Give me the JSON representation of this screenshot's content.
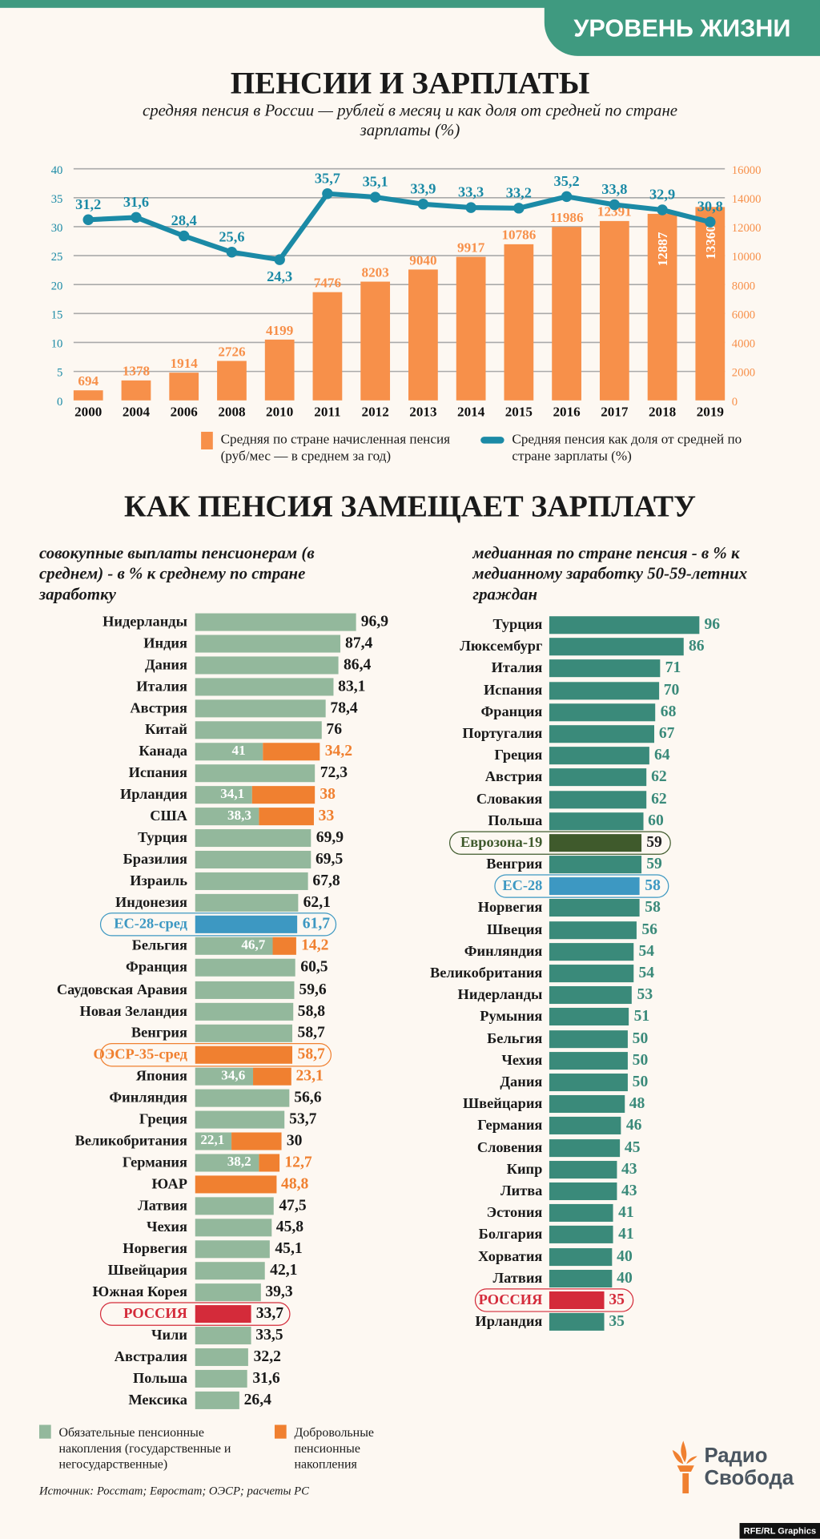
{
  "header": {
    "section_badge": "УРОВЕНЬ ЖИЗНИ"
  },
  "top": {
    "title": "ПЕНСИИ И ЗАРПЛАТЫ",
    "subtitle": "средняя пенсия в России — рублей в месяц и как доля от средней по стране зарплаты (%)",
    "legend_bars": "Средняя по стране начисленная пенсия (руб/мес — в среднем за год)",
    "legend_line": "Средняя пенсия как доля от средней по стране зарплаты (%)"
  },
  "middle": {
    "title": "КАК ПЕНСИЯ ЗАМЕЩАЕТ ЗАРПЛАТУ",
    "left_heading": "совокупные выплаты пенсионерам (в среднем) - в % к среднему по стране заработку",
    "right_heading": "медианная по стране пенсия - в % к медианному заработку 50-59-летних граждан",
    "legend_mandatory": "Обязательные пенсионные накопления (государственные и негосударственные)",
    "legend_voluntary": "Добровольные пенсионные накопления"
  },
  "footer": {
    "source": "Источник: Росстат; Евростат; ОЭСР; расчеты РС",
    "logo_line1": "Радио",
    "logo_line2": "Свобода",
    "credit": "RFE/RL Graphics"
  },
  "colors": {
    "bar_orange": "#f7904a",
    "line_blue": "#1b8aa6",
    "green": "#93b89c",
    "voluntary": "#f08030",
    "teal": "#3a8a7a",
    "eu_blue": "#3d98c2",
    "eurozone": "#3f5a2c",
    "russia": "#d42b3a",
    "accent": "#3f9a80"
  },
  "chart_data": [
    {
      "type": "bar+line",
      "categories": [
        "2000",
        "2004",
        "2006",
        "2008",
        "2010",
        "2011",
        "2012",
        "2013",
        "2014",
        "2015",
        "2016",
        "2017",
        "2018",
        "2019"
      ],
      "series": [
        {
          "name": "Средняя по стране начисленная пенсия (руб/мес — в среднем за год)",
          "type": "bar",
          "axis": "right",
          "values": [
            694,
            1378,
            1914,
            2726,
            4199,
            7476,
            8203,
            9040,
            9917,
            10786,
            11986,
            12391,
            12887,
            13360
          ]
        },
        {
          "name": "Средняя пенсия как доля от средней по стране зарплаты (%)",
          "type": "line",
          "axis": "left",
          "values": [
            31.2,
            31.6,
            28.4,
            25.6,
            24.3,
            35.7,
            35.1,
            33.9,
            33.3,
            33.2,
            35.2,
            33.8,
            32.9,
            30.8
          ],
          "labels": [
            "31,2",
            "31,6",
            "28,4",
            "25,6",
            "24,3",
            "35,7",
            "35,1",
            "33,9",
            "33,3",
            "33,2",
            "35,2",
            "33,8",
            "32,9",
            "30,8"
          ]
        }
      ],
      "yleft": {
        "ticks": [
          "0",
          "5",
          "10",
          "15",
          "20",
          "25",
          "30",
          "35",
          "40"
        ],
        "lim": [
          0,
          40
        ]
      },
      "yright": {
        "ticks": [
          "0",
          "2000",
          "4000",
          "6000",
          "8000",
          "10000",
          "12000",
          "14000",
          "16000"
        ],
        "lim": [
          0,
          16000
        ]
      },
      "grid": true,
      "legend": "bottom"
    },
    {
      "type": "bar",
      "stacked": true,
      "rows": [
        {
          "name": "Нидерланды",
          "mandatory": 96.9,
          "label": "96,9"
        },
        {
          "name": "Индия",
          "mandatory": 87.4,
          "label": "87,4"
        },
        {
          "name": "Дания",
          "mandatory": 86.4,
          "label": "86,4"
        },
        {
          "name": "Италия",
          "mandatory": 83.1,
          "label": "83,1"
        },
        {
          "name": "Австрия",
          "mandatory": 78.4,
          "label": "78,4"
        },
        {
          "name": "Китай",
          "mandatory": 76,
          "label": "76"
        },
        {
          "name": "Канада",
          "mandatory": 41,
          "voluntary": 34.2,
          "mlabel": "41",
          "label": "34,2"
        },
        {
          "name": "Испания",
          "mandatory": 72.3,
          "label": "72,3"
        },
        {
          "name": "Ирландия",
          "mandatory": 34.1,
          "voluntary": 38,
          "mlabel": "34,1",
          "label": "38"
        },
        {
          "name": "США",
          "mandatory": 38.3,
          "voluntary": 33,
          "mlabel": "38,3",
          "label": "33"
        },
        {
          "name": "Турция",
          "mandatory": 69.9,
          "label": "69,9"
        },
        {
          "name": "Бразилия",
          "mandatory": 69.5,
          "label": "69,5"
        },
        {
          "name": "Израиль",
          "mandatory": 67.8,
          "label": "67,8"
        },
        {
          "name": "Индонезия",
          "mandatory": 62.1,
          "label": "62,1"
        },
        {
          "name": "ЕС-28-сред",
          "mandatory": 61.7,
          "label": "61,7",
          "highlight": "eu"
        },
        {
          "name": "Бельгия",
          "mandatory": 46.7,
          "voluntary": 14.2,
          "mlabel": "46,7",
          "label": "14,2"
        },
        {
          "name": "Франция",
          "mandatory": 60.5,
          "label": "60,5"
        },
        {
          "name": "Саудовская Аравия",
          "mandatory": 59.6,
          "label": "59,6"
        },
        {
          "name": "Новая Зеландия",
          "mandatory": 58.8,
          "label": "58,8"
        },
        {
          "name": "Венгрия",
          "mandatory": 58.7,
          "label": "58,7"
        },
        {
          "name": "ОЭСР-35-сред",
          "mandatory": 58.7,
          "label": "58,7",
          "highlight": "oecd"
        },
        {
          "name": "Япония",
          "mandatory": 34.6,
          "voluntary": 23.1,
          "mlabel": "34,6",
          "label": "23,1"
        },
        {
          "name": "Финляндия",
          "mandatory": 56.6,
          "label": "56,6"
        },
        {
          "name": "Греция",
          "mandatory": 53.7,
          "label": "53,7"
        },
        {
          "name": "Великобритания",
          "mandatory": 22.1,
          "voluntary": 30,
          "mlabel": "22,1",
          "label": "30",
          "label_dark": true
        },
        {
          "name": "Германия",
          "mandatory": 38.2,
          "voluntary": 12.7,
          "mlabel": "38,2",
          "label": "12,7"
        },
        {
          "name": "ЮАР",
          "mandatory": 0,
          "voluntary": 48.8,
          "label": "48,8"
        },
        {
          "name": "Латвия",
          "mandatory": 47.5,
          "label": "47,5"
        },
        {
          "name": "Чехия",
          "mandatory": 45.8,
          "label": "45,8"
        },
        {
          "name": "Норвегия",
          "mandatory": 45.1,
          "label": "45,1"
        },
        {
          "name": "Швейцария",
          "mandatory": 42.1,
          "label": "42,1"
        },
        {
          "name": "Южная Корея",
          "mandatory": 39.3,
          "label": "39,3"
        },
        {
          "name": "РОССИЯ",
          "mandatory": 33.7,
          "label": "33,7",
          "highlight": "russia"
        },
        {
          "name": "Чили",
          "mandatory": 33.5,
          "label": "33,5"
        },
        {
          "name": "Австралия",
          "mandatory": 32.2,
          "label": "32,2"
        },
        {
          "name": "Польша",
          "mandatory": 31.6,
          "label": "31,6"
        },
        {
          "name": "Мексика",
          "mandatory": 26.4,
          "label": "26,4"
        }
      ],
      "legend": "bottom-left"
    },
    {
      "type": "bar",
      "rows": [
        {
          "name": "Турция",
          "value": 96,
          "label": "96"
        },
        {
          "name": "Люксембург",
          "value": 86,
          "label": "86"
        },
        {
          "name": "Италия",
          "value": 71,
          "label": "71"
        },
        {
          "name": "Испания",
          "value": 70,
          "label": "70"
        },
        {
          "name": "Франция",
          "value": 68,
          "label": "68"
        },
        {
          "name": "Португалия",
          "value": 67,
          "label": "67"
        },
        {
          "name": "Греция",
          "value": 64,
          "label": "64"
        },
        {
          "name": "Австрия",
          "value": 62,
          "label": "62"
        },
        {
          "name": "Словакия",
          "value": 62,
          "label": "62"
        },
        {
          "name": "Польша",
          "value": 60,
          "label": "60"
        },
        {
          "name": "Еврозона-19",
          "value": 59,
          "label": "59",
          "highlight": "eurozone"
        },
        {
          "name": "Венгрия",
          "value": 59,
          "label": "59"
        },
        {
          "name": "ЕС-28",
          "value": 58,
          "label": "58",
          "highlight": "eu"
        },
        {
          "name": "Норвегия",
          "value": 58,
          "label": "58"
        },
        {
          "name": "Швеция",
          "value": 56,
          "label": "56"
        },
        {
          "name": "Финляндия",
          "value": 54,
          "label": "54"
        },
        {
          "name": "Великобритания",
          "value": 54,
          "label": "54"
        },
        {
          "name": "Нидерланды",
          "value": 53,
          "label": "53"
        },
        {
          "name": "Румыния",
          "value": 51,
          "label": "51"
        },
        {
          "name": "Бельгия",
          "value": 50,
          "label": "50"
        },
        {
          "name": "Чехия",
          "value": 50,
          "label": "50"
        },
        {
          "name": "Дания",
          "value": 50,
          "label": "50"
        },
        {
          "name": "Швейцария",
          "value": 48,
          "label": "48"
        },
        {
          "name": "Германия",
          "value": 46,
          "label": "46"
        },
        {
          "name": "Словения",
          "value": 45,
          "label": "45"
        },
        {
          "name": "Кипр",
          "value": 43,
          "label": "43"
        },
        {
          "name": "Литва",
          "value": 43,
          "label": "43"
        },
        {
          "name": "Эстония",
          "value": 41,
          "label": "41"
        },
        {
          "name": "Болгария",
          "value": 41,
          "label": "41"
        },
        {
          "name": "Хорватия",
          "value": 40,
          "label": "40"
        },
        {
          "name": "Латвия",
          "value": 40,
          "label": "40"
        },
        {
          "name": "РОССИЯ",
          "value": 35,
          "label": "35",
          "highlight": "russia"
        },
        {
          "name": "Ирландия",
          "value": 35,
          "label": "35"
        }
      ]
    }
  ]
}
